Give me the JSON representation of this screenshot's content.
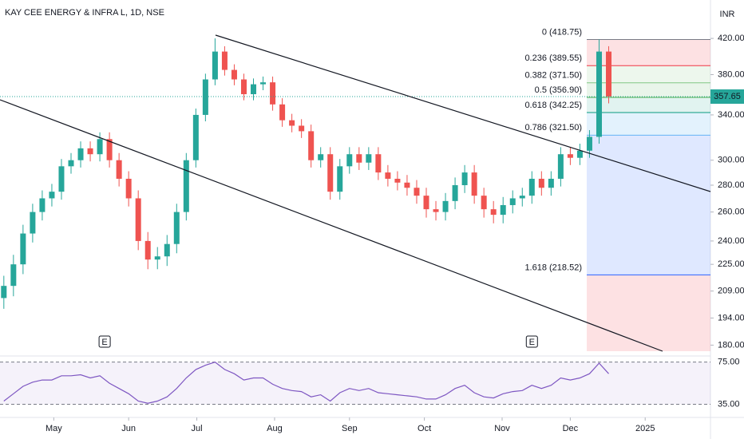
{
  "chart_data": [
    {
      "type": "candlestick",
      "title": "KAY CEE ENERGY & INFRA L, 1D, NSE",
      "currency": "INR",
      "log_scale": true,
      "up_color": "#26a69a",
      "down_color": "#ef5350",
      "ylim": [
        177,
        467
      ],
      "yticks": [
        {
          "value": 420,
          "label": "420.00"
        },
        {
          "value": 380,
          "label": "380.00"
        },
        {
          "value": 340,
          "label": "340.00"
        },
        {
          "value": 300,
          "label": "300.00"
        },
        {
          "value": 280,
          "label": "280.00"
        },
        {
          "value": 260,
          "label": "260.00"
        },
        {
          "value": 240,
          "label": "240.00"
        },
        {
          "value": 225,
          "label": "225.00"
        },
        {
          "value": 209,
          "label": "209.00"
        },
        {
          "value": 194,
          "label": "194.00"
        },
        {
          "value": 180,
          "label": "180.00"
        }
      ],
      "xlim": [
        -0.4,
        73.6
      ],
      "xticks": [
        {
          "value": 5.2,
          "label": "May"
        },
        {
          "value": 13,
          "label": "Jun"
        },
        {
          "value": 20.1,
          "label": "Jul"
        },
        {
          "value": 28.2,
          "label": "Aug"
        },
        {
          "value": 36,
          "label": "Sep"
        },
        {
          "value": 43.8,
          "label": "Oct"
        },
        {
          "value": 51.9,
          "label": "Nov"
        },
        {
          "value": 59,
          "label": "Dec"
        },
        {
          "value": 66.8,
          "label": "2025"
        }
      ],
      "open": [
        205,
        212,
        225,
        245,
        260,
        270,
        275,
        295,
        300,
        310,
        305,
        318,
        300,
        285,
        270,
        240,
        228,
        230,
        238,
        260,
        300,
        340,
        375,
        405,
        385,
        375,
        360,
        370,
        372,
        350,
        335,
        330,
        325,
        300,
        305,
        275,
        295,
        305,
        298,
        305,
        290,
        285,
        282,
        278,
        272,
        262,
        260,
        268,
        280,
        290,
        272,
        262,
        258,
        265,
        270,
        272,
        285,
        278,
        285,
        305,
        302,
        308,
        320,
        405
      ],
      "high": [
        218,
        231,
        251,
        266,
        276,
        281,
        301,
        306,
        316,
        316,
        324,
        324,
        306,
        291,
        276,
        246,
        236,
        244,
        266,
        306,
        346,
        381,
        420,
        411,
        391,
        381,
        376,
        378,
        378,
        356,
        341,
        336,
        331,
        311,
        311,
        301,
        311,
        311,
        311,
        311,
        296,
        291,
        288,
        284,
        278,
        268,
        274,
        286,
        296,
        296,
        278,
        268,
        271,
        276,
        278,
        291,
        291,
        291,
        311,
        311,
        314,
        326,
        418.75,
        411
      ],
      "low": [
        199,
        206,
        219,
        239,
        254,
        264,
        269,
        289,
        294,
        299,
        299,
        294,
        279,
        264,
        234,
        222,
        222,
        224,
        232,
        254,
        294,
        334,
        369,
        379,
        369,
        354,
        354,
        364,
        344,
        329,
        324,
        319,
        294,
        294,
        269,
        269,
        289,
        292,
        292,
        284,
        279,
        276,
        272,
        266,
        256,
        254,
        254,
        262,
        274,
        266,
        256,
        252,
        252,
        259,
        264,
        266,
        272,
        272,
        279,
        296,
        296,
        302,
        314,
        351
      ],
      "close": [
        212,
        225,
        245,
        260,
        270,
        275,
        295,
        300,
        310,
        305,
        318,
        300,
        285,
        270,
        240,
        228,
        230,
        238,
        260,
        300,
        340,
        375,
        405,
        385,
        375,
        360,
        370,
        372,
        350,
        335,
        330,
        325,
        300,
        305,
        275,
        295,
        305,
        298,
        305,
        290,
        285,
        282,
        278,
        272,
        262,
        260,
        268,
        280,
        290,
        272,
        262,
        258,
        265,
        270,
        272,
        285,
        278,
        285,
        305,
        302,
        308,
        320,
        405,
        357.65
      ],
      "last_price": 357.65,
      "last_price_color": "#26a69a",
      "events": [
        {
          "label": "E",
          "x": 10.5
        },
        {
          "label": "E",
          "x": 55
        }
      ],
      "fib_levels": [
        {
          "label": "0 (418.75)",
          "value": 418.75,
          "color": "#787b86",
          "zone": "rgba(242,54,69,0.15)"
        },
        {
          "label": "0.236 (389.55)",
          "value": 389.55,
          "color": "#f23645",
          "zone": "rgba(76,175,80,0.10)"
        },
        {
          "label": "0.382 (371.50)",
          "value": 371.5,
          "color": "#81c784",
          "zone": "rgba(76,175,80,0.12)"
        },
        {
          "label": "0.5 (356.90)",
          "value": 356.9,
          "color": "#4caf50",
          "zone": "rgba(8,153,129,0.12)"
        },
        {
          "label": "0.618 (342.25)",
          "value": 342.25,
          "color": "#089981",
          "zone": "rgba(100,181,246,0.18)"
        },
        {
          "label": "0.786 (321.50)",
          "value": 321.5,
          "color": "#64b5f6",
          "zone": "rgba(41,98,255,0.15)"
        },
        {
          "label": "1.618 (218.52)",
          "value": 218.52,
          "color": "#2962ff",
          "zone": "rgba(242,54,69,0.15)"
        }
      ]
    },
    {
      "type": "line",
      "color": "#7e57c2",
      "ylim": [
        22.5,
        80.8
      ],
      "yticks": [
        {
          "value": 75,
          "label": "75.00"
        },
        {
          "value": 35,
          "label": "35.00"
        }
      ],
      "values": [
        38,
        45,
        52,
        56,
        58,
        58,
        62,
        62,
        63,
        60,
        62,
        55,
        50,
        45,
        38,
        36,
        38,
        42,
        50,
        60,
        68,
        72,
        75,
        68,
        64,
        58,
        60,
        60,
        54,
        50,
        48,
        47,
        42,
        44,
        38,
        46,
        50,
        48,
        50,
        46,
        45,
        44,
        43,
        42,
        40,
        40,
        44,
        50,
        53,
        46,
        42,
        41,
        45,
        47,
        48,
        53,
        50,
        53,
        60,
        58,
        60,
        64,
        74,
        64
      ]
    }
  ]
}
